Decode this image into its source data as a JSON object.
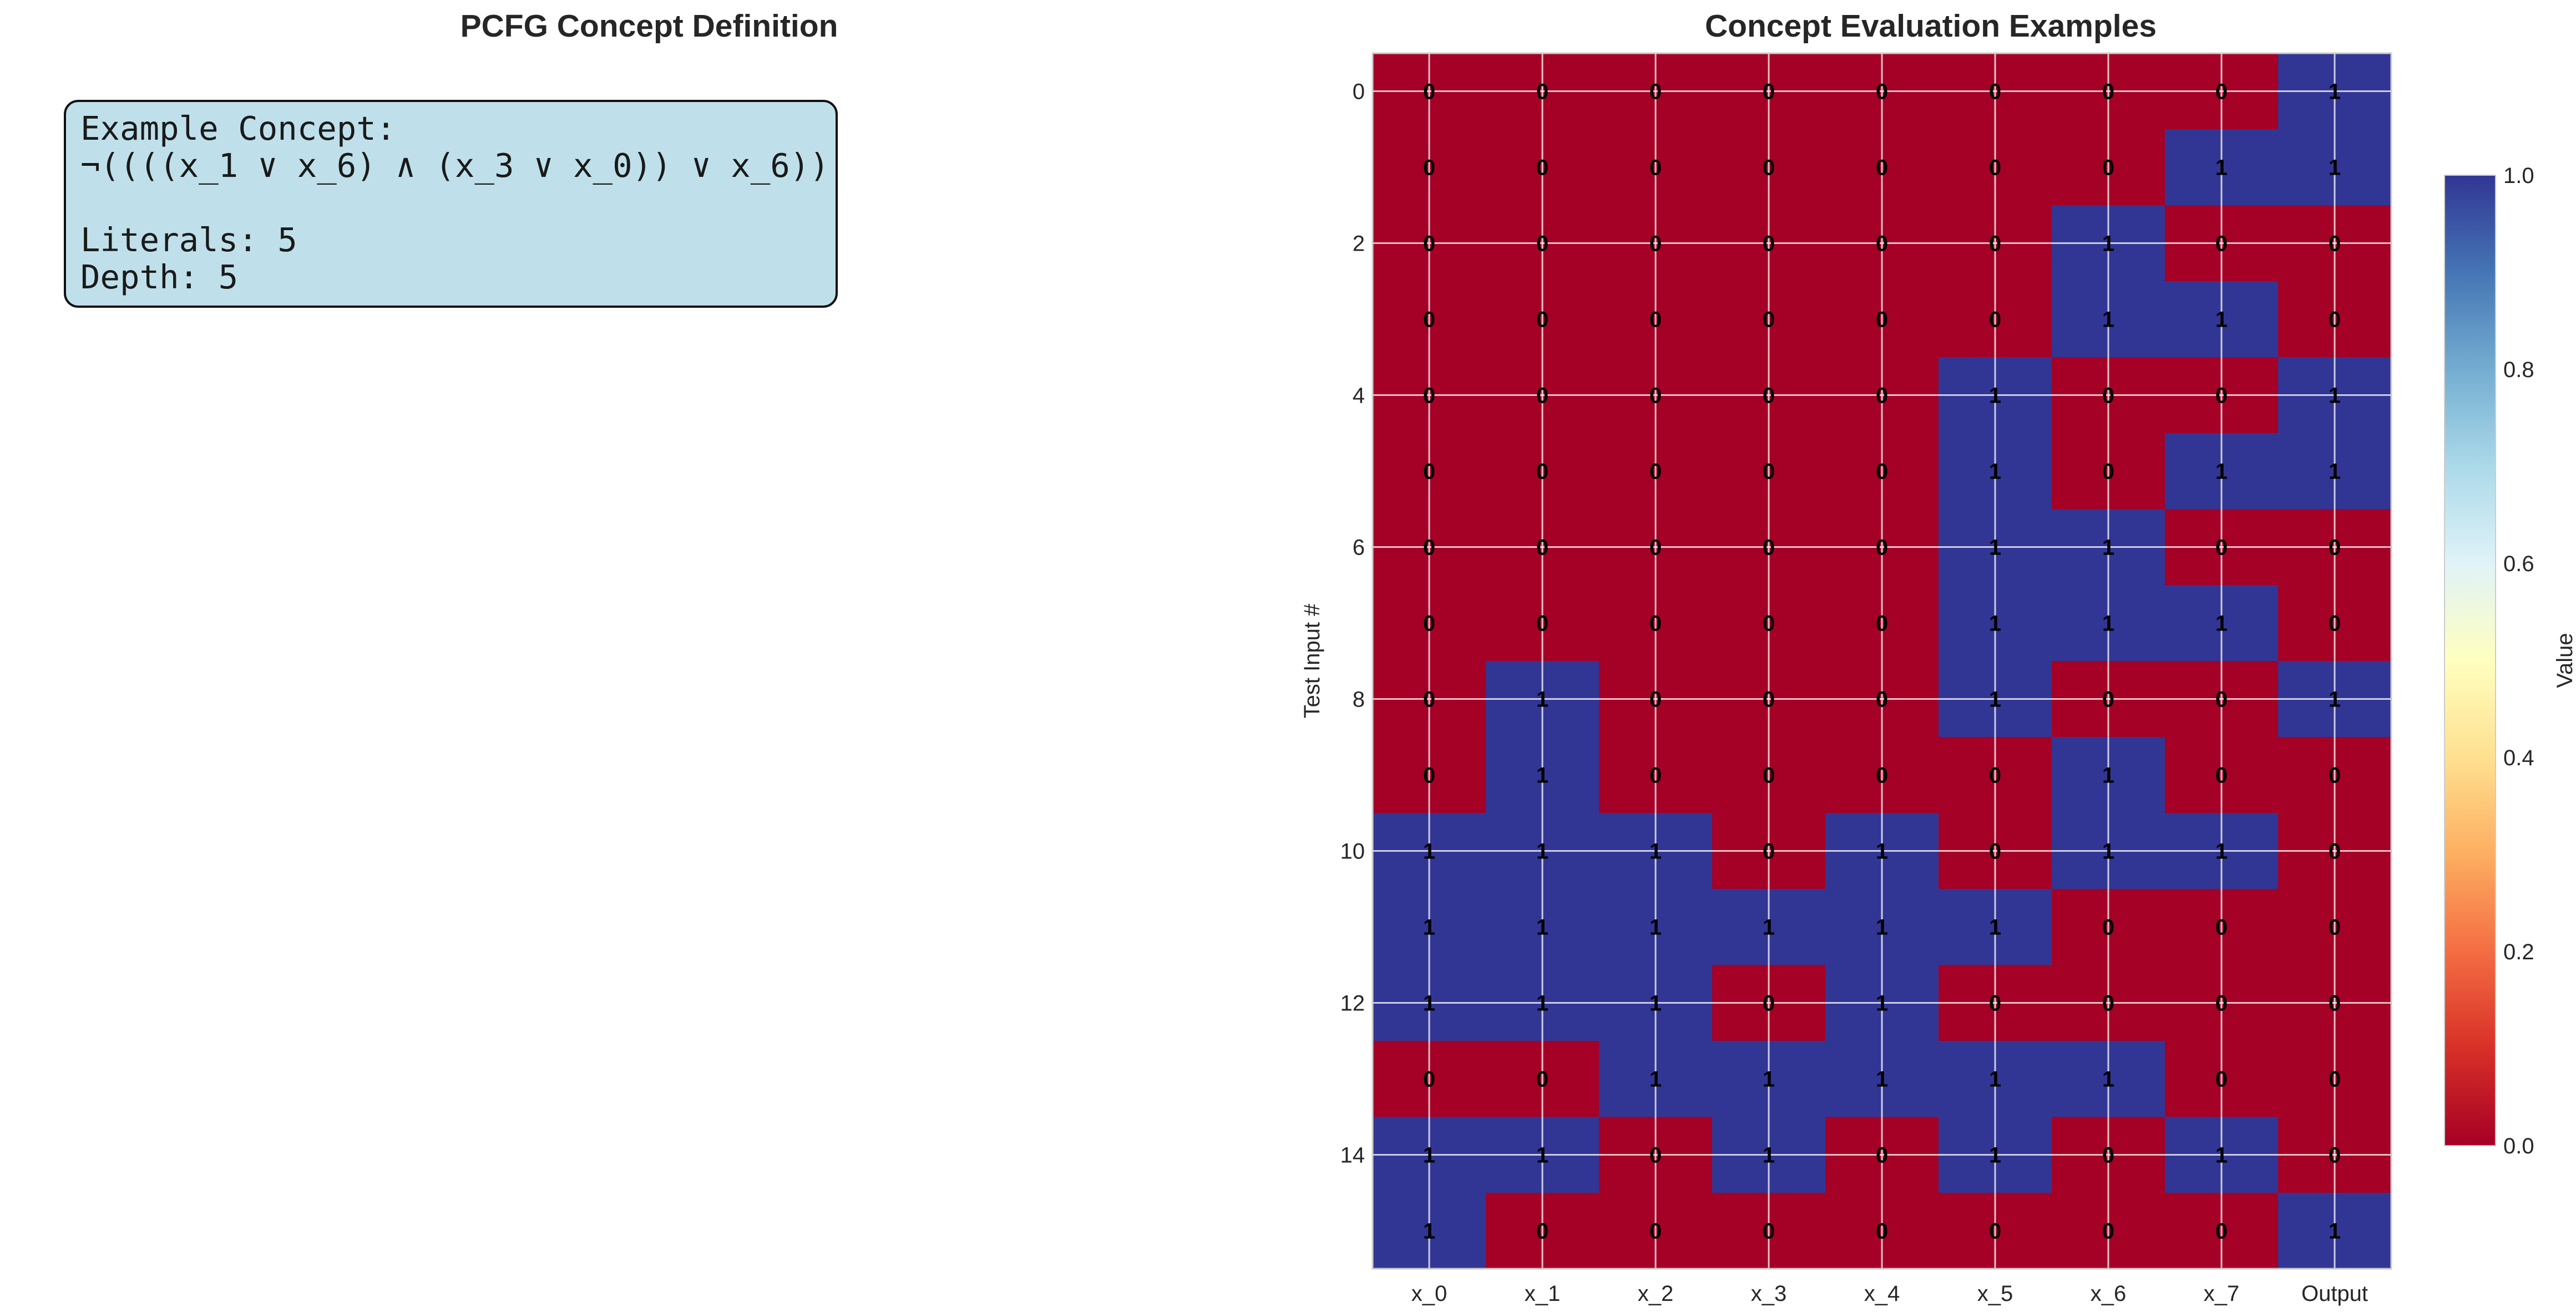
{
  "panels": {
    "left_title": "PCFG Concept Definition",
    "right_title": "Concept Evaluation Examples"
  },
  "concept": {
    "heading": "Example Concept:",
    "formula": "¬((((x_1 ∨ x_6) ∧ (x_3 ∨ x_0)) ∨ x_6))",
    "literals": "Literals: 5",
    "depth": "Depth: 5"
  },
  "colors": {
    "zero": "#a50026",
    "one": "#313695",
    "box_fill": "#bfe0ea"
  },
  "chart_data": {
    "type": "heatmap",
    "title": "Concept Evaluation Examples",
    "xlabel": "",
    "ylabel": "Test Input #",
    "columns": [
      "x_0",
      "x_1",
      "x_2",
      "x_3",
      "x_4",
      "x_5",
      "x_6",
      "x_7",
      "Output"
    ],
    "rows": [
      0,
      1,
      2,
      3,
      4,
      5,
      6,
      7,
      8,
      9,
      10,
      11,
      12,
      13,
      14,
      15
    ],
    "y_ticks": [
      0,
      2,
      4,
      6,
      8,
      10,
      12,
      14
    ],
    "values": [
      [
        0,
        0,
        0,
        0,
        0,
        0,
        0,
        0,
        1
      ],
      [
        0,
        0,
        0,
        0,
        0,
        0,
        0,
        1,
        1
      ],
      [
        0,
        0,
        0,
        0,
        0,
        0,
        1,
        0,
        0
      ],
      [
        0,
        0,
        0,
        0,
        0,
        0,
        1,
        1,
        0
      ],
      [
        0,
        0,
        0,
        0,
        0,
        1,
        0,
        0,
        1
      ],
      [
        0,
        0,
        0,
        0,
        0,
        1,
        0,
        1,
        1
      ],
      [
        0,
        0,
        0,
        0,
        0,
        1,
        1,
        0,
        0
      ],
      [
        0,
        0,
        0,
        0,
        0,
        1,
        1,
        1,
        0
      ],
      [
        0,
        1,
        0,
        0,
        0,
        1,
        0,
        0,
        1
      ],
      [
        0,
        1,
        0,
        0,
        0,
        0,
        1,
        0,
        0
      ],
      [
        1,
        1,
        1,
        0,
        1,
        0,
        1,
        1,
        0
      ],
      [
        1,
        1,
        1,
        1,
        1,
        1,
        0,
        0,
        0
      ],
      [
        1,
        1,
        1,
        0,
        1,
        0,
        0,
        0,
        0
      ],
      [
        0,
        0,
        1,
        1,
        1,
        1,
        1,
        0,
        0
      ],
      [
        1,
        1,
        0,
        1,
        0,
        1,
        0,
        1,
        0
      ],
      [
        1,
        0,
        0,
        0,
        0,
        0,
        0,
        0,
        1
      ]
    ],
    "colormap": "RdYlBu",
    "colorbar": {
      "label": "Value",
      "range": [
        0.0,
        1.0
      ],
      "ticks": [
        "0.0",
        "0.2",
        "0.4",
        "0.6",
        "0.8",
        "1.0"
      ]
    },
    "grid": true
  }
}
